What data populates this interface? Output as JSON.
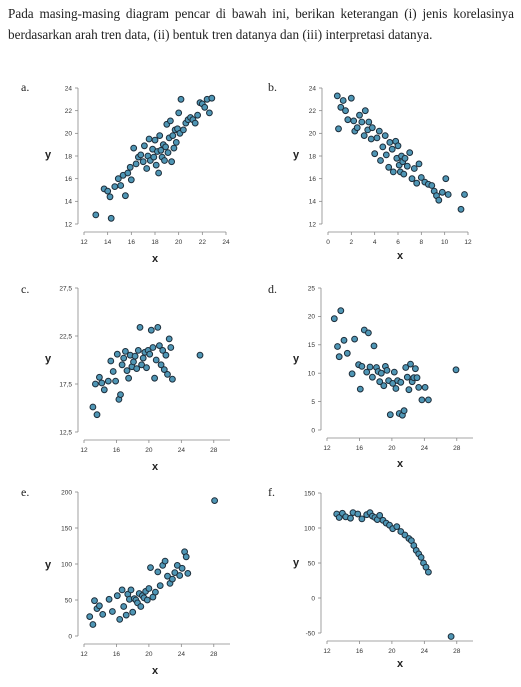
{
  "intro": {
    "text": "Pada masing-masing diagram pencar di bawah ini, berikan keterangan (i) jenis korelasinya berdasarkan arah tren data, (ii) bentuk tren datanya dan (iii) interpretasi datanya."
  },
  "style": {
    "dot_fill": "#4f96b5",
    "dot_stroke": "#1d2d3a",
    "axis_color": "#888888"
  },
  "chart_data": [
    {
      "id": "a",
      "label": "a.",
      "type": "scatter",
      "xlabel": "x",
      "ylabel": "y",
      "xlim": [
        12,
        24
      ],
      "ylim": [
        12,
        24
      ],
      "xticks": [
        "12",
        "14",
        "16",
        "18",
        "20",
        "22",
        "24"
      ],
      "yticks": [
        "12",
        "14",
        "16",
        "18",
        "20",
        "22",
        "24"
      ],
      "points": [
        [
          13.0,
          12.8
        ],
        [
          13.7,
          15.1
        ],
        [
          14.0,
          14.9
        ],
        [
          14.2,
          14.4
        ],
        [
          14.3,
          12.5
        ],
        [
          14.6,
          15.3
        ],
        [
          14.9,
          16.0
        ],
        [
          15.1,
          15.4
        ],
        [
          15.3,
          16.3
        ],
        [
          15.5,
          14.5
        ],
        [
          15.7,
          16.5
        ],
        [
          15.9,
          17.0
        ],
        [
          16.0,
          15.9
        ],
        [
          16.2,
          18.7
        ],
        [
          16.4,
          17.3
        ],
        [
          16.6,
          17.9
        ],
        [
          16.8,
          18.1
        ],
        [
          17.0,
          17.5
        ],
        [
          17.1,
          18.9
        ],
        [
          17.3,
          16.9
        ],
        [
          17.4,
          18.0
        ],
        [
          17.5,
          19.5
        ],
        [
          17.6,
          17.6
        ],
        [
          17.8,
          18.6
        ],
        [
          17.9,
          17.9
        ],
        [
          18.0,
          19.4
        ],
        [
          18.1,
          17.2
        ],
        [
          18.2,
          18.4
        ],
        [
          18.3,
          16.5
        ],
        [
          18.4,
          19.8
        ],
        [
          18.5,
          18.5
        ],
        [
          18.6,
          17.9
        ],
        [
          18.7,
          19.0
        ],
        [
          18.8,
          17.6
        ],
        [
          18.9,
          18.8
        ],
        [
          19.0,
          20.8
        ],
        [
          19.1,
          18.3
        ],
        [
          19.2,
          19.6
        ],
        [
          19.3,
          21.1
        ],
        [
          19.4,
          17.5
        ],
        [
          19.5,
          19.8
        ],
        [
          19.6,
          18.7
        ],
        [
          19.7,
          20.3
        ],
        [
          19.8,
          19.2
        ],
        [
          19.9,
          20.4
        ],
        [
          20.0,
          21.8
        ],
        [
          20.1,
          20.0
        ],
        [
          20.2,
          23.0
        ],
        [
          20.4,
          20.3
        ],
        [
          20.6,
          20.9
        ],
        [
          20.8,
          21.2
        ],
        [
          21.0,
          21.4
        ],
        [
          21.2,
          21.2
        ],
        [
          21.4,
          20.9
        ],
        [
          21.6,
          21.6
        ],
        [
          21.8,
          22.7
        ],
        [
          22.0,
          22.6
        ],
        [
          22.2,
          22.3
        ],
        [
          22.4,
          23.0
        ],
        [
          22.6,
          21.8
        ],
        [
          22.8,
          23.1
        ]
      ]
    },
    {
      "id": "b",
      "label": "b.",
      "type": "scatter",
      "xlabel": "x",
      "ylabel": "y",
      "xlim": [
        0,
        12
      ],
      "ylim": [
        12,
        24
      ],
      "xticks": [
        "0",
        "2",
        "4",
        "6",
        "8",
        "10",
        "12"
      ],
      "yticks": [
        "12",
        "14",
        "16",
        "18",
        "20",
        "22",
        "24"
      ],
      "points": [
        [
          0.8,
          23.3
        ],
        [
          0.9,
          20.4
        ],
        [
          1.1,
          22.3
        ],
        [
          1.3,
          22.9
        ],
        [
          1.5,
          22.0
        ],
        [
          1.7,
          21.2
        ],
        [
          2.0,
          23.1
        ],
        [
          2.2,
          21.1
        ],
        [
          2.3,
          20.2
        ],
        [
          2.5,
          20.5
        ],
        [
          2.7,
          21.6
        ],
        [
          2.9,
          21.0
        ],
        [
          3.1,
          19.8
        ],
        [
          3.2,
          22.0
        ],
        [
          3.4,
          20.3
        ],
        [
          3.5,
          21.0
        ],
        [
          3.7,
          19.5
        ],
        [
          3.8,
          20.5
        ],
        [
          4.0,
          18.2
        ],
        [
          4.2,
          19.6
        ],
        [
          4.4,
          20.2
        ],
        [
          4.5,
          17.6
        ],
        [
          4.7,
          18.8
        ],
        [
          4.9,
          19.8
        ],
        [
          5.0,
          18.1
        ],
        [
          5.2,
          17.0
        ],
        [
          5.3,
          19.2
        ],
        [
          5.5,
          18.6
        ],
        [
          5.6,
          16.6
        ],
        [
          5.8,
          19.3
        ],
        [
          5.9,
          17.8
        ],
        [
          6.0,
          18.9
        ],
        [
          6.1,
          17.2
        ],
        [
          6.2,
          16.6
        ],
        [
          6.3,
          18.0
        ],
        [
          6.4,
          17.5
        ],
        [
          6.5,
          16.4
        ],
        [
          6.6,
          17.8
        ],
        [
          6.8,
          17.1
        ],
        [
          7.0,
          18.3
        ],
        [
          7.2,
          16.0
        ],
        [
          7.4,
          16.9
        ],
        [
          7.6,
          15.6
        ],
        [
          7.8,
          17.3
        ],
        [
          8.0,
          16.1
        ],
        [
          8.3,
          15.7
        ],
        [
          8.6,
          15.5
        ],
        [
          8.9,
          15.4
        ],
        [
          9.1,
          14.9
        ],
        [
          9.3,
          14.5
        ],
        [
          9.5,
          14.1
        ],
        [
          9.8,
          14.8
        ],
        [
          10.1,
          16.0
        ],
        [
          10.3,
          14.6
        ],
        [
          11.4,
          13.3
        ],
        [
          11.7,
          14.6
        ]
      ]
    },
    {
      "id": "c",
      "label": "c.",
      "type": "scatter",
      "xlabel": "x",
      "ylabel": "y",
      "xlim": [
        12,
        30
      ],
      "ylim": [
        12.5,
        27.5
      ],
      "xticks": [
        "12",
        "16",
        "20",
        "24",
        "28"
      ],
      "yticks": [
        "12,5",
        "17,5",
        "22,5",
        "27,5"
      ],
      "ytick_values": [
        12.5,
        17.5,
        22.5,
        27.5
      ],
      "xtick_values": [
        12,
        16,
        20,
        24,
        28
      ],
      "points": [
        [
          13.1,
          15.1
        ],
        [
          13.4,
          17.5
        ],
        [
          13.6,
          14.3
        ],
        [
          13.9,
          18.2
        ],
        [
          14.2,
          17.6
        ],
        [
          14.5,
          16.9
        ],
        [
          15.0,
          17.8
        ],
        [
          15.3,
          19.9
        ],
        [
          15.6,
          18.8
        ],
        [
          15.9,
          17.8
        ],
        [
          16.1,
          20.6
        ],
        [
          16.3,
          15.9
        ],
        [
          16.5,
          16.4
        ],
        [
          16.7,
          19.5
        ],
        [
          16.9,
          20.2
        ],
        [
          17.1,
          20.9
        ],
        [
          17.3,
          18.9
        ],
        [
          17.5,
          18.1
        ],
        [
          17.7,
          20.5
        ],
        [
          17.9,
          19.3
        ],
        [
          18.1,
          19.8
        ],
        [
          18.3,
          20.4
        ],
        [
          18.5,
          19.1
        ],
        [
          18.7,
          21.0
        ],
        [
          18.9,
          23.4
        ],
        [
          19.1,
          19.5
        ],
        [
          19.3,
          20.2
        ],
        [
          19.5,
          20.8
        ],
        [
          19.7,
          19.2
        ],
        [
          19.9,
          21.0
        ],
        [
          20.1,
          20.6
        ],
        [
          20.3,
          23.1
        ],
        [
          20.5,
          21.3
        ],
        [
          20.7,
          18.1
        ],
        [
          20.9,
          20.0
        ],
        [
          21.1,
          23.4
        ],
        [
          21.3,
          21.5
        ],
        [
          21.5,
          19.5
        ],
        [
          21.7,
          21.0
        ],
        [
          21.9,
          19.0
        ],
        [
          22.1,
          20.5
        ],
        [
          22.3,
          18.5
        ],
        [
          22.5,
          22.2
        ],
        [
          22.7,
          21.3
        ],
        [
          22.9,
          18.0
        ],
        [
          26.3,
          20.5
        ]
      ]
    },
    {
      "id": "d",
      "label": "d.",
      "type": "scatter",
      "xlabel": "x",
      "ylabel": "y",
      "xlim": [
        12,
        30
      ],
      "ylim": [
        0,
        25
      ],
      "xticks": [
        "12",
        "16",
        "20",
        "24",
        "28"
      ],
      "yticks": [
        "0",
        "5",
        "10",
        "15",
        "20",
        "25"
      ],
      "points": [
        [
          12.9,
          19.6
        ],
        [
          13.3,
          14.7
        ],
        [
          13.5,
          12.9
        ],
        [
          13.7,
          21.0
        ],
        [
          14.1,
          15.8
        ],
        [
          14.5,
          13.5
        ],
        [
          15.1,
          9.9
        ],
        [
          15.4,
          16.0
        ],
        [
          15.9,
          11.5
        ],
        [
          16.1,
          7.2
        ],
        [
          16.3,
          11.2
        ],
        [
          16.6,
          17.6
        ],
        [
          16.9,
          10.2
        ],
        [
          17.1,
          17.1
        ],
        [
          17.3,
          11.1
        ],
        [
          17.6,
          9.3
        ],
        [
          17.8,
          14.8
        ],
        [
          18.1,
          11.0
        ],
        [
          18.3,
          10.3
        ],
        [
          18.5,
          8.5
        ],
        [
          18.7,
          10.0
        ],
        [
          19.0,
          7.8
        ],
        [
          19.2,
          11.2
        ],
        [
          19.4,
          10.5
        ],
        [
          19.6,
          8.7
        ],
        [
          19.8,
          2.7
        ],
        [
          20.1,
          8.2
        ],
        [
          20.3,
          10.2
        ],
        [
          20.5,
          7.3
        ],
        [
          20.7,
          8.7
        ],
        [
          20.9,
          2.9
        ],
        [
          21.1,
          8.4
        ],
        [
          21.3,
          2.6
        ],
        [
          21.5,
          3.4
        ],
        [
          21.7,
          11.0
        ],
        [
          21.9,
          9.3
        ],
        [
          22.1,
          7.1
        ],
        [
          22.3,
          11.6
        ],
        [
          22.5,
          8.5
        ],
        [
          22.7,
          9.2
        ],
        [
          22.9,
          10.8
        ],
        [
          23.1,
          9.2
        ],
        [
          23.3,
          7.5
        ],
        [
          23.7,
          5.3
        ],
        [
          24.1,
          7.5
        ],
        [
          24.5,
          5.3
        ],
        [
          27.9,
          10.6
        ]
      ]
    },
    {
      "id": "e",
      "label": "e.",
      "type": "scatter",
      "xlabel": "x",
      "ylabel": "y",
      "xlim": [
        12,
        30
      ],
      "ylim": [
        0,
        200
      ],
      "xticks": [
        "12",
        "16",
        "20",
        "24",
        "28"
      ],
      "yticks": [
        "0",
        "50",
        "100",
        "150",
        "200"
      ],
      "points": [
        [
          12.7,
          27.0
        ],
        [
          13.1,
          16.0
        ],
        [
          13.3,
          49.0
        ],
        [
          13.6,
          38.0
        ],
        [
          13.9,
          42.0
        ],
        [
          14.3,
          30.0
        ],
        [
          15.1,
          51.0
        ],
        [
          15.5,
          34.0
        ],
        [
          16.1,
          56.0
        ],
        [
          16.4,
          23.0
        ],
        [
          16.7,
          64.0
        ],
        [
          16.9,
          41.0
        ],
        [
          17.2,
          29.0
        ],
        [
          17.4,
          58.0
        ],
        [
          17.6,
          51.0
        ],
        [
          17.8,
          64.0
        ],
        [
          18.0,
          33.0
        ],
        [
          18.2,
          52.0
        ],
        [
          18.4,
          50.0
        ],
        [
          18.6,
          46.0
        ],
        [
          18.8,
          59.0
        ],
        [
          19.0,
          41.0
        ],
        [
          19.2,
          56.0
        ],
        [
          19.4,
          53.0
        ],
        [
          19.6,
          62.0
        ],
        [
          19.8,
          50.0
        ],
        [
          20.0,
          66.0
        ],
        [
          20.2,
          95.0
        ],
        [
          20.5,
          54.0
        ],
        [
          20.8,
          61.0
        ],
        [
          21.1,
          89.0
        ],
        [
          21.4,
          70.0
        ],
        [
          21.7,
          98.0
        ],
        [
          22.0,
          104.0
        ],
        [
          22.3,
          83.0
        ],
        [
          22.6,
          73.0
        ],
        [
          22.9,
          79.0
        ],
        [
          23.2,
          88.0
        ],
        [
          23.5,
          98.0
        ],
        [
          23.8,
          84.0
        ],
        [
          24.1,
          94.0
        ],
        [
          24.4,
          117.0
        ],
        [
          24.6,
          110.0
        ],
        [
          24.8,
          87.0
        ],
        [
          28.1,
          188.0
        ]
      ]
    },
    {
      "id": "f",
      "label": "f.",
      "type": "scatter",
      "xlabel": "x",
      "ylabel": "y",
      "xlim": [
        12,
        30
      ],
      "ylim": [
        -50,
        150
      ],
      "xticks": [
        "12",
        "16",
        "20",
        "24",
        "28"
      ],
      "yticks": [
        "-50",
        "0",
        "50",
        "100",
        "150"
      ],
      "points": [
        [
          13.2,
          120.0
        ],
        [
          13.5,
          115.0
        ],
        [
          13.9,
          121.0
        ],
        [
          14.3,
          116.0
        ],
        [
          14.9,
          114.0
        ],
        [
          15.2,
          122.0
        ],
        [
          15.8,
          120.0
        ],
        [
          16.3,
          113.0
        ],
        [
          16.9,
          119.0
        ],
        [
          17.3,
          122.0
        ],
        [
          17.6,
          117.0
        ],
        [
          17.9,
          115.0
        ],
        [
          18.2,
          112.0
        ],
        [
          18.5,
          118.0
        ],
        [
          18.9,
          111.0
        ],
        [
          19.3,
          107.0
        ],
        [
          19.7,
          104.0
        ],
        [
          20.1,
          99.0
        ],
        [
          20.6,
          102.0
        ],
        [
          21.1,
          95.0
        ],
        [
          21.6,
          90.0
        ],
        [
          22.1,
          85.0
        ],
        [
          22.4,
          82.0
        ],
        [
          22.7,
          75.0
        ],
        [
          23.0,
          68.0
        ],
        [
          23.3,
          63.0
        ],
        [
          23.6,
          58.0
        ],
        [
          23.9,
          50.0
        ],
        [
          24.2,
          44.0
        ],
        [
          24.5,
          37.0
        ],
        [
          27.3,
          -55.0
        ]
      ]
    }
  ]
}
